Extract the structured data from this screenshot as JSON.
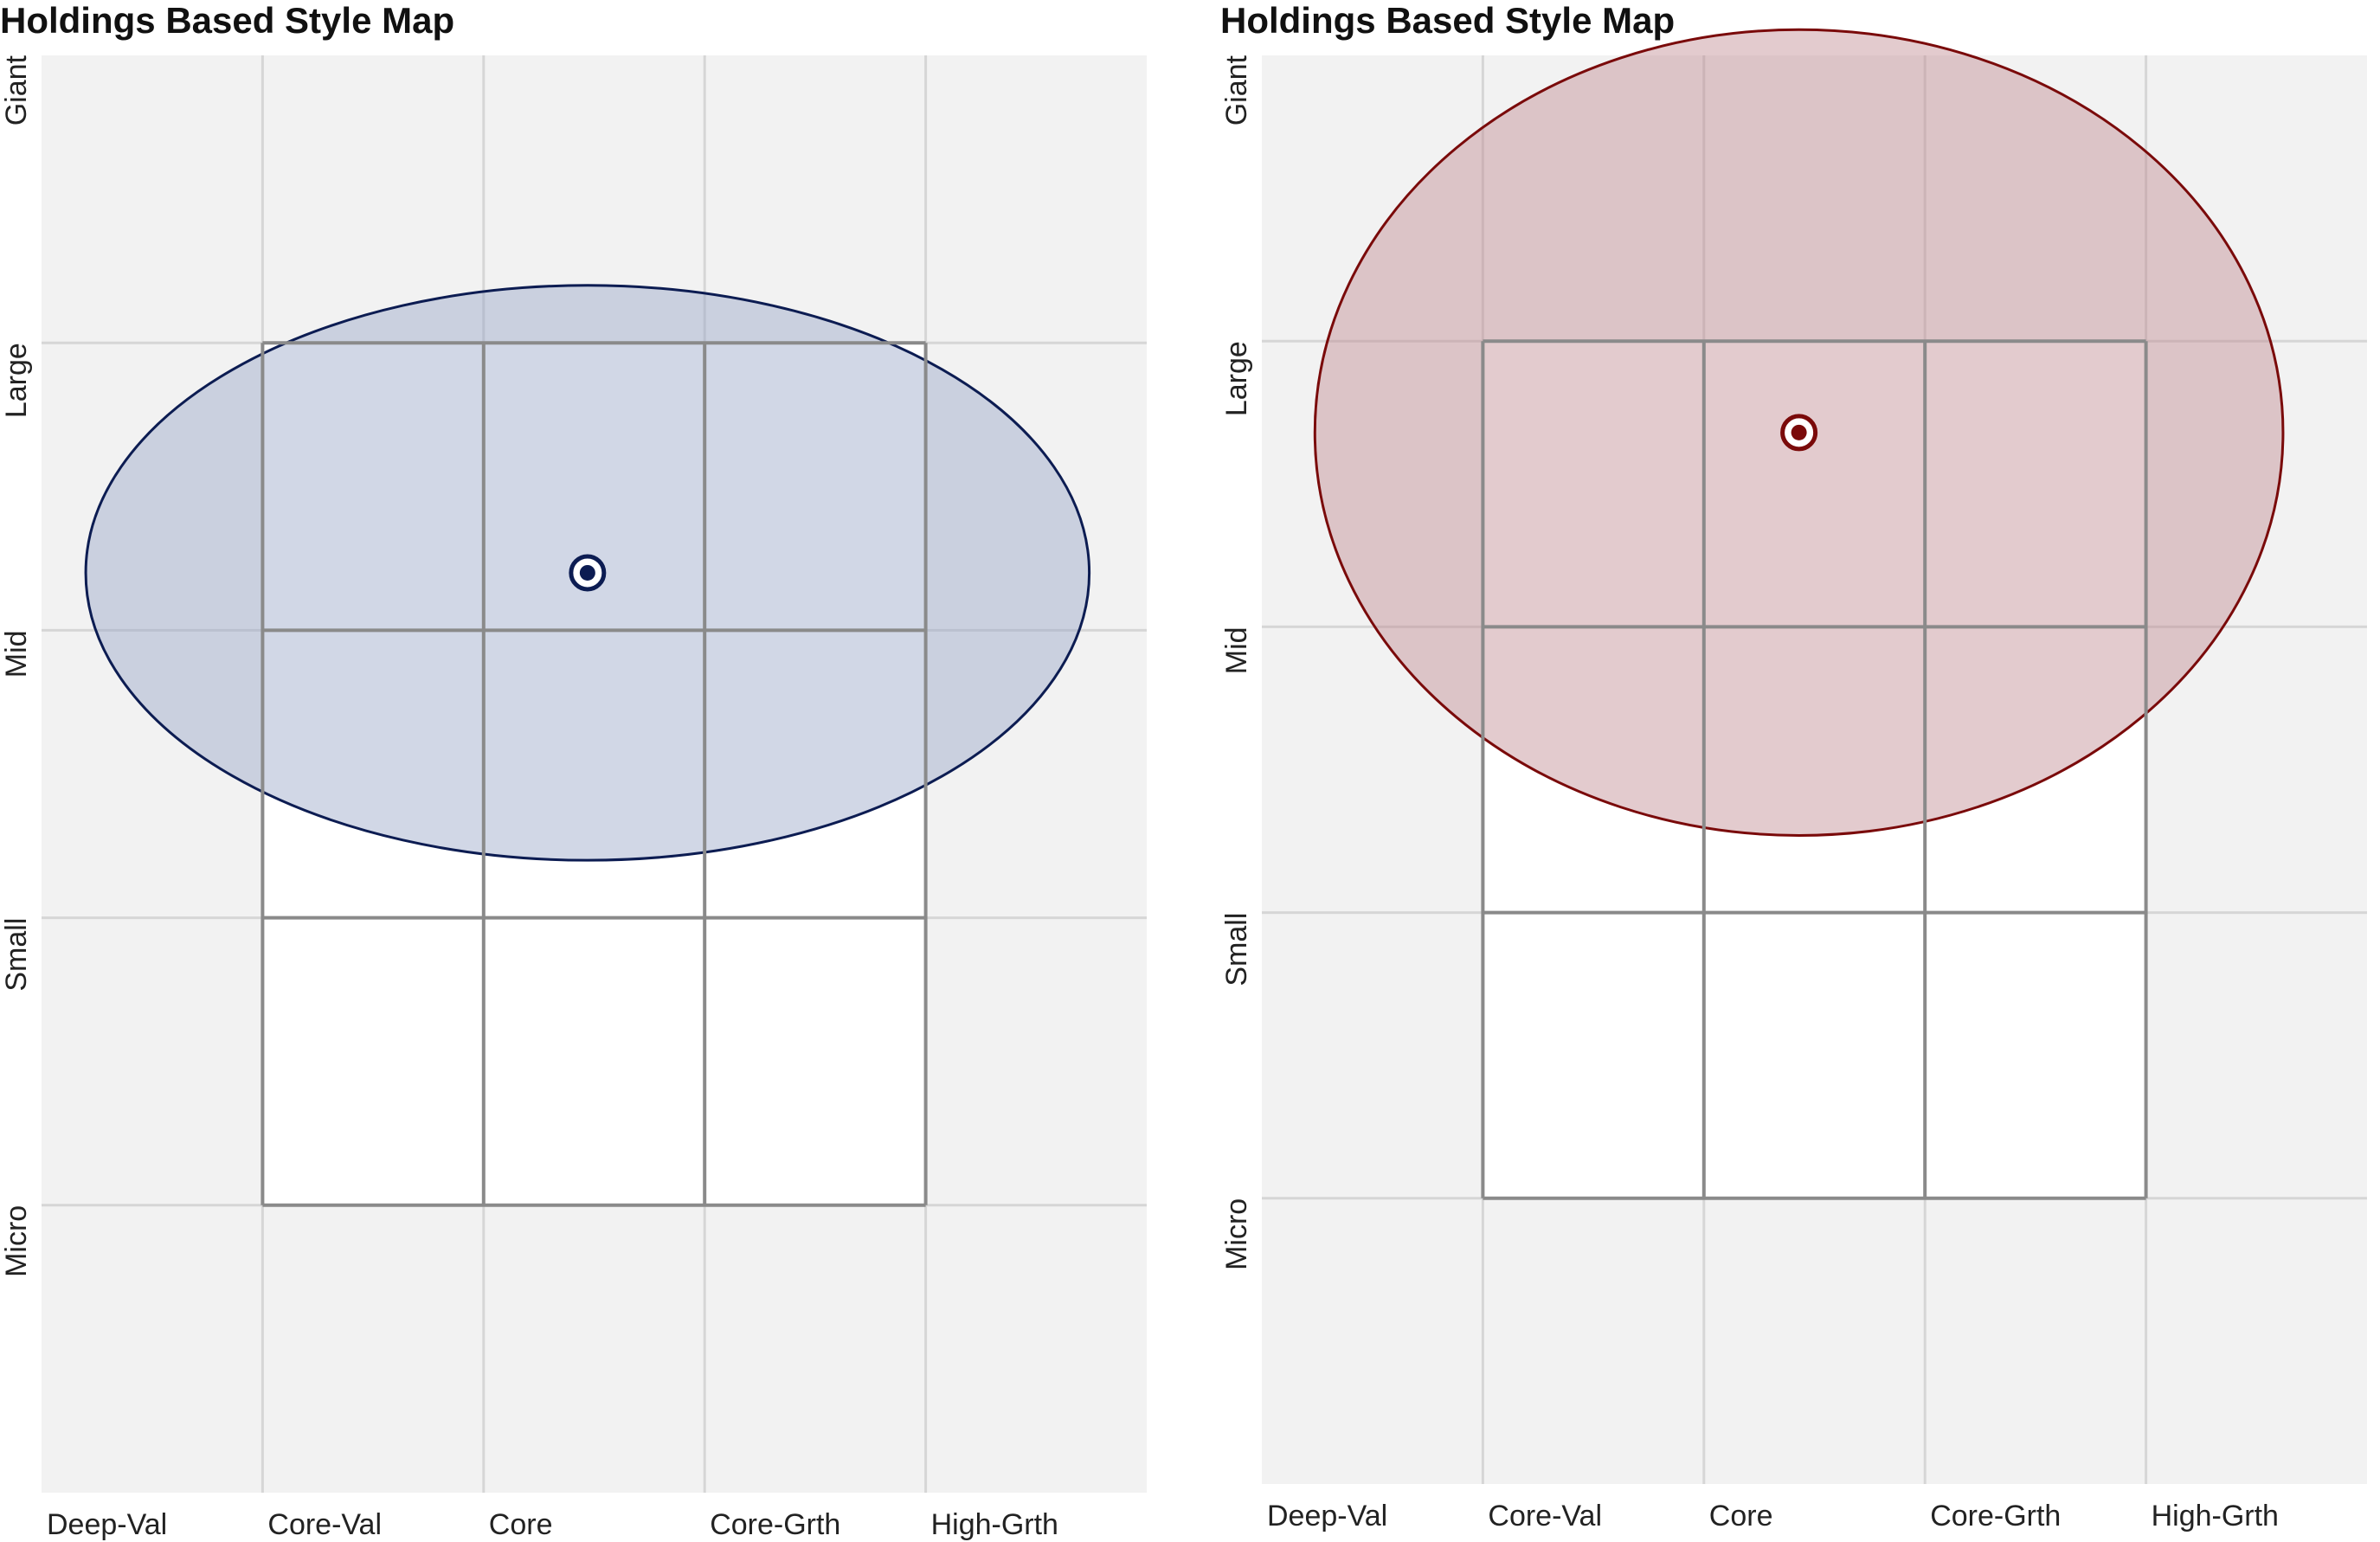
{
  "chart_data": [
    {
      "type": "scatter",
      "title": "Holdings Based Style Map",
      "x_categories": [
        "Deep-Val",
        "Core-Val",
        "Core",
        "Core-Grth",
        "High-Grth"
      ],
      "y_categories": [
        "Micro",
        "Small",
        "Mid",
        "Large",
        "Giant"
      ],
      "grid": true,
      "style_box": {
        "x_range": [
          1,
          4
        ],
        "y_range": [
          1,
          4
        ]
      },
      "centroid": {
        "x": 2.47,
        "y": 3.2
      },
      "ellipse": {
        "center_x": 2.47,
        "center_y": 3.2,
        "x_radius": 2.27,
        "y_radius": 1.0
      },
      "colors": {
        "fill": "#9aa6c8",
        "stroke": "#0c1c52",
        "marker": "#0c1c52"
      }
    },
    {
      "type": "scatter",
      "title": "Holdings Based Style Map",
      "x_categories": [
        "Deep-Val",
        "Core-Val",
        "Core",
        "Core-Grth",
        "High-Grth"
      ],
      "y_categories": [
        "Micro",
        "Small",
        "Mid",
        "Large",
        "Giant"
      ],
      "grid": true,
      "style_box": {
        "x_range": [
          1,
          4
        ],
        "y_range": [
          1,
          4
        ]
      },
      "centroid": {
        "x": 2.43,
        "y": 3.68
      },
      "ellipse": {
        "center_x": 2.43,
        "center_y": 3.68,
        "x_radius": 2.19,
        "y_radius": 1.41
      },
      "colors": {
        "fill": "#c08c92",
        "stroke": "#7a0a0a",
        "marker": "#7a0a0a"
      }
    }
  ]
}
